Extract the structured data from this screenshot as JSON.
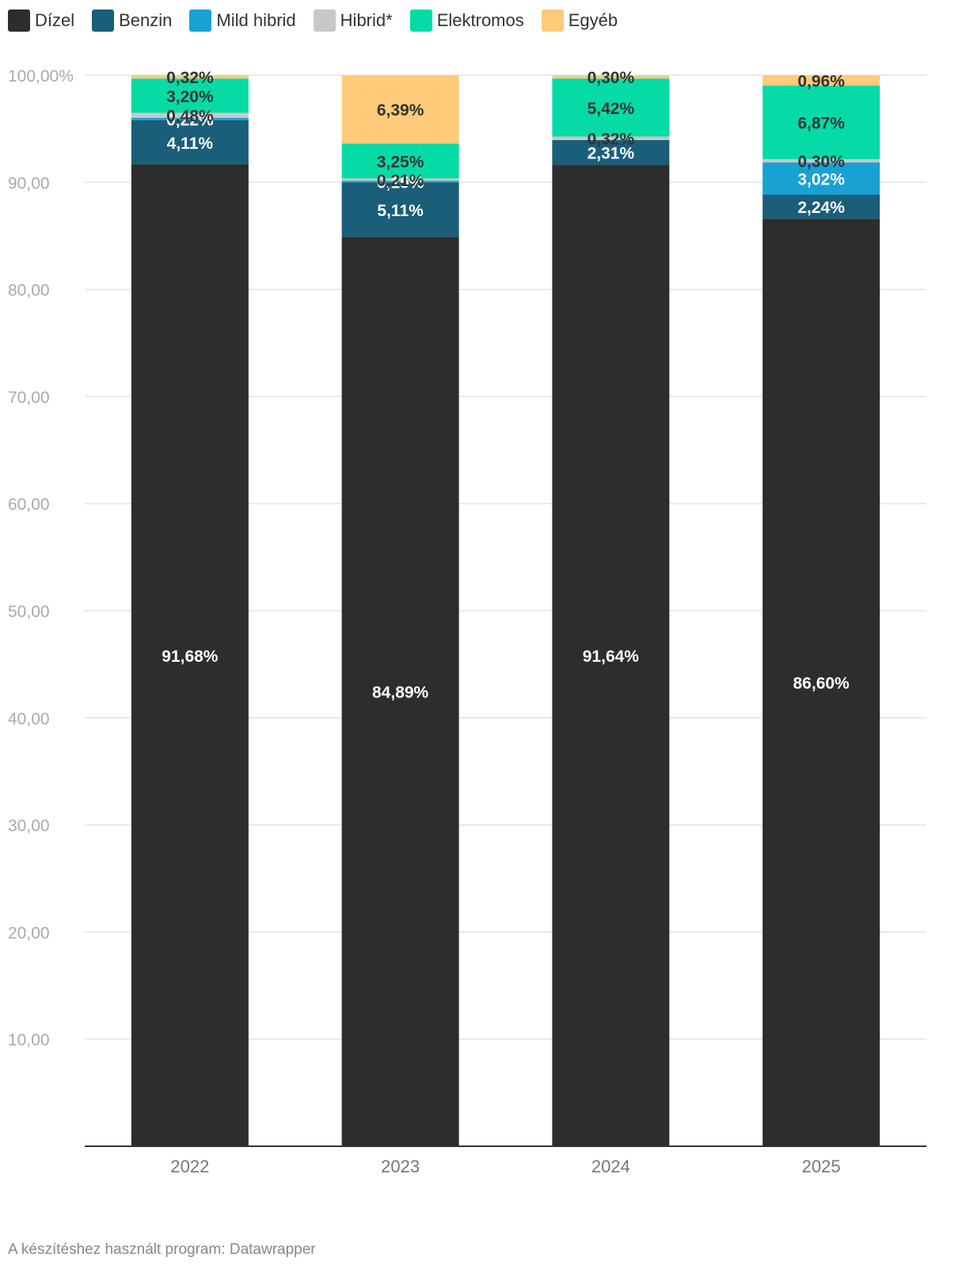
{
  "colors": {
    "Dízel": "#2d2d2d",
    "Benzin": "#1a5e7a",
    "Mild hibrid": "#1aa1d3",
    "Hibrid*": "#c8c8c8",
    "Elektromos": "#05dba6",
    "Egyéb": "#ffca7a"
  },
  "legend": [
    "Dízel",
    "Benzin",
    "Mild hibrid",
    "Hibrid*",
    "Elektromos",
    "Egyéb"
  ],
  "chart_data": {
    "type": "bar",
    "stacked": true,
    "categories": [
      "2022",
      "2023",
      "2024",
      "2025"
    ],
    "series": [
      {
        "name": "Dízel",
        "values": [
          91.68,
          84.89,
          91.64,
          86.6
        ],
        "labels": [
          "91,68%",
          "84,89%",
          "91,64%",
          "86,60%"
        ]
      },
      {
        "name": "Benzin",
        "values": [
          4.11,
          5.11,
          2.31,
          2.24
        ],
        "labels": [
          "4,11%",
          "5,11%",
          "2,31%",
          "2,24%"
        ]
      },
      {
        "name": "Mild hibrid",
        "values": [
          0.22,
          0.15,
          0.0,
          3.02
        ],
        "labels": [
          "0,22%",
          "0,15%",
          "",
          "3,02%"
        ]
      },
      {
        "name": "Hibrid*",
        "values": [
          0.48,
          0.21,
          0.32,
          0.3
        ],
        "labels": [
          "0,48%",
          "0,21%",
          "0,32%",
          "0,30%"
        ]
      },
      {
        "name": "Elektromos",
        "values": [
          3.2,
          3.25,
          5.42,
          6.87
        ],
        "labels": [
          "3,20%",
          "3,25%",
          "5,42%",
          "6,87%"
        ]
      },
      {
        "name": "Egyéb",
        "values": [
          0.32,
          6.39,
          0.3,
          0.96
        ],
        "labels": [
          "0,32%",
          "6,39%",
          "0,30%",
          "0,96%"
        ]
      }
    ],
    "ylim": [
      0,
      100
    ],
    "yticks": [
      10,
      20,
      30,
      40,
      50,
      60,
      70,
      80,
      90,
      100
    ],
    "ytick_labels": [
      "10,00",
      "20,00",
      "30,00",
      "40,00",
      "50,00",
      "60,00",
      "70,00",
      "80,00",
      "90,00",
      "100,00%"
    ],
    "grid": true,
    "legend_position": "top-left"
  },
  "footer": "A készítéshez használt program: Datawrapper"
}
